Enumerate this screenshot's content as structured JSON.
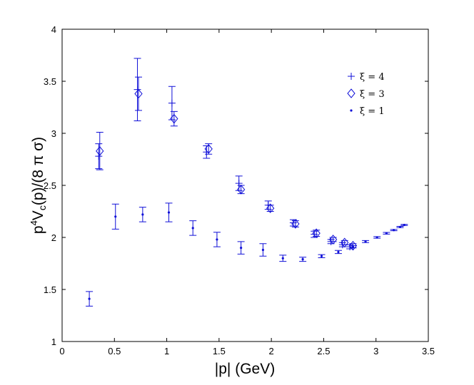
{
  "chart_data": {
    "type": "scatter",
    "title": "",
    "xlabel": "|p| (GeV)",
    "ylabel": "p⁴V_c(p)/(8 π σ)",
    "xlim": [
      0,
      3.5
    ],
    "ylim": [
      1,
      4
    ],
    "xticks": [
      "0",
      "0.5",
      "1",
      "1.5",
      "2",
      "2.5",
      "3",
      "3.5"
    ],
    "yticks": [
      "1",
      "1.5",
      "2",
      "2.5",
      "3",
      "3.5",
      "4"
    ],
    "grid": false,
    "legend_position": "top-right",
    "colors": {
      "series": "#1010d8",
      "axis": "#000000"
    },
    "series": [
      {
        "name": "ξ = 4",
        "legend": "ξ = 4",
        "marker": "plus",
        "points": [
          {
            "x": 0.35,
            "y": 2.78,
            "err": 0.12
          },
          {
            "x": 0.72,
            "y": 3.42,
            "err": 0.3
          },
          {
            "x": 1.05,
            "y": 3.29,
            "err": 0.16
          },
          {
            "x": 1.38,
            "y": 2.82,
            "err": 0.06
          },
          {
            "x": 1.69,
            "y": 2.52,
            "err": 0.07
          },
          {
            "x": 1.97,
            "y": 2.31,
            "err": 0.04
          },
          {
            "x": 2.21,
            "y": 2.14,
            "err": 0.03
          },
          {
            "x": 2.41,
            "y": 2.03,
            "err": 0.03
          },
          {
            "x": 2.57,
            "y": 1.96,
            "err": 0.02
          },
          {
            "x": 2.68,
            "y": 1.93,
            "err": 0.02
          },
          {
            "x": 2.75,
            "y": 1.91,
            "err": 0.02
          }
        ]
      },
      {
        "name": "ξ = 3",
        "legend": "ξ = 3",
        "marker": "diamond",
        "points": [
          {
            "x": 0.36,
            "y": 2.83,
            "err": 0.18
          },
          {
            "x": 0.73,
            "y": 3.38,
            "err": 0.16
          },
          {
            "x": 1.07,
            "y": 3.14,
            "err": 0.07
          },
          {
            "x": 1.4,
            "y": 2.85,
            "err": 0.05
          },
          {
            "x": 1.71,
            "y": 2.46,
            "err": 0.04
          },
          {
            "x": 1.99,
            "y": 2.28,
            "err": 0.03
          },
          {
            "x": 2.23,
            "y": 2.13,
            "err": 0.03
          },
          {
            "x": 2.43,
            "y": 2.04,
            "err": 0.03
          },
          {
            "x": 2.59,
            "y": 1.98,
            "err": 0.02
          },
          {
            "x": 2.7,
            "y": 1.95,
            "err": 0.02
          },
          {
            "x": 2.78,
            "y": 1.92,
            "err": 0.02
          }
        ]
      },
      {
        "name": "ξ = 1",
        "legend": "ξ = 1",
        "marker": "dot",
        "points": [
          {
            "x": 0.26,
            "y": 1.41,
            "err": 0.07
          },
          {
            "x": 0.51,
            "y": 2.2,
            "err": 0.12
          },
          {
            "x": 0.77,
            "y": 2.22,
            "err": 0.07
          },
          {
            "x": 1.02,
            "y": 2.24,
            "err": 0.09
          },
          {
            "x": 1.25,
            "y": 2.09,
            "err": 0.07
          },
          {
            "x": 1.48,
            "y": 1.98,
            "err": 0.07
          },
          {
            "x": 1.71,
            "y": 1.9,
            "err": 0.06
          },
          {
            "x": 1.92,
            "y": 1.88,
            "err": 0.06
          },
          {
            "x": 2.11,
            "y": 1.8,
            "err": 0.03
          },
          {
            "x": 2.3,
            "y": 1.79,
            "err": 0.02
          },
          {
            "x": 2.48,
            "y": 1.82,
            "err": 0.015
          },
          {
            "x": 2.64,
            "y": 1.86,
            "err": 0.015
          },
          {
            "x": 2.78,
            "y": 1.91,
            "err": 0.01
          },
          {
            "x": 2.9,
            "y": 1.96,
            "err": 0.01
          },
          {
            "x": 3.01,
            "y": 2.0,
            "err": 0.008
          },
          {
            "x": 3.1,
            "y": 2.04,
            "err": 0.008
          },
          {
            "x": 3.17,
            "y": 2.07,
            "err": 0.006
          },
          {
            "x": 3.23,
            "y": 2.1,
            "err": 0.006
          },
          {
            "x": 3.27,
            "y": 2.12,
            "err": 0.005
          }
        ]
      }
    ]
  }
}
